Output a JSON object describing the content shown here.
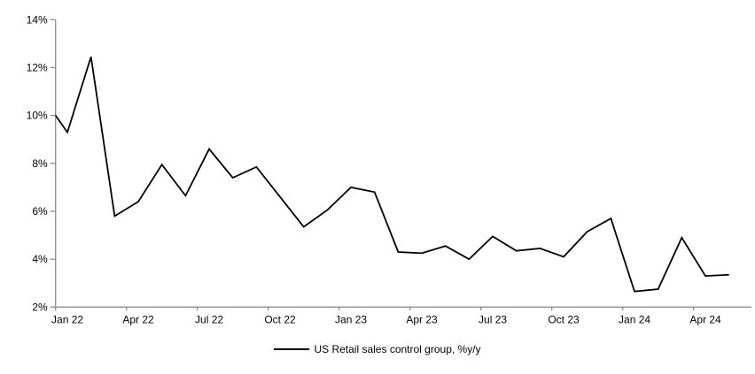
{
  "chart_data": {
    "type": "line",
    "title": "",
    "legend_position": "bottom",
    "grid": false,
    "background_color": "#ffffff",
    "axis_color": "#8c8c8c",
    "text_color": "#000000",
    "ylim": [
      2,
      14
    ],
    "yticks": [
      "2%",
      "4%",
      "6%",
      "8%",
      "10%",
      "12%",
      "14%"
    ],
    "xticks_shown": [
      "Jan 22",
      "Apr 22",
      "Jul 22",
      "Oct 22",
      "Jan 23",
      "Apr 23",
      "Jul 23",
      "Oct 23",
      "Jan 24",
      "Apr 24"
    ],
    "x": [
      "Jan 22",
      "Feb 22",
      "Mar 22",
      "Apr 22",
      "May 22",
      "Jun 22",
      "Jul 22",
      "Aug 22",
      "Sep 22",
      "Oct 22",
      "Nov 22",
      "Dec 22",
      "Jan 23",
      "Feb 23",
      "Mar 23",
      "Apr 23",
      "May 23",
      "Jun 23",
      "Jul 23",
      "Aug 23",
      "Sep 23",
      "Oct 23",
      "Nov 23",
      "Dec 23",
      "Jan 24",
      "Feb 24",
      "Mar 24",
      "Apr 24",
      "May 24"
    ],
    "series": [
      {
        "name": "US Retail sales control group, %y/y",
        "color": "#000000",
        "clipped_lead_in_value": 10.7,
        "values": [
          9.3,
          12.45,
          5.8,
          6.4,
          7.95,
          6.65,
          8.6,
          7.4,
          7.85,
          6.6,
          5.35,
          6.05,
          7.0,
          6.8,
          4.3,
          4.25,
          4.55,
          4.0,
          4.95,
          4.35,
          4.45,
          4.1,
          5.15,
          5.7,
          2.65,
          2.75,
          4.9,
          3.3,
          3.35
        ]
      }
    ]
  }
}
